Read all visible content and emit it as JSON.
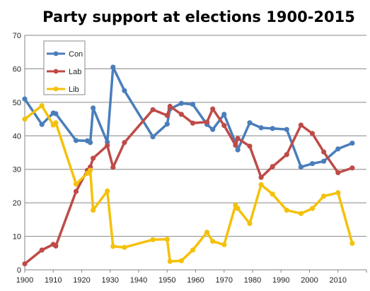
{
  "chart_data": {
    "type": "line",
    "title": "Party support at elections 1900-2015",
    "xlabel": "",
    "ylabel": "",
    "xlim": [
      1900,
      2020
    ],
    "ylim": [
      0,
      70
    ],
    "x_ticks": [
      1900,
      1910,
      1920,
      1930,
      1940,
      1950,
      1960,
      1970,
      1980,
      1990,
      2000,
      2010
    ],
    "y_ticks": [
      0,
      10,
      20,
      30,
      40,
      50,
      60,
      70
    ],
    "grid": "horizontal",
    "legend_position": "top-left",
    "series": [
      {
        "name": "Con",
        "color": "#4a7ebb",
        "points": [
          [
            1900,
            51
          ],
          [
            1906,
            43.4
          ],
          [
            1910,
            46.8
          ],
          [
            1910.9,
            46.6
          ],
          [
            1918,
            38.6
          ],
          [
            1922,
            38.5
          ],
          [
            1923,
            38
          ],
          [
            1924,
            48.3
          ],
          [
            1929,
            38.1
          ],
          [
            1931,
            60.5
          ],
          [
            1935,
            53.5
          ],
          [
            1945,
            39.7
          ],
          [
            1950,
            43.5
          ],
          [
            1951,
            48
          ],
          [
            1955,
            49.7
          ],
          [
            1959,
            49.4
          ],
          [
            1964,
            43.4
          ],
          [
            1966,
            41.9
          ],
          [
            1970,
            46.4
          ],
          [
            1974,
            37.9
          ],
          [
            1974.8,
            35.8
          ],
          [
            1979,
            43.9
          ],
          [
            1983,
            42.4
          ],
          [
            1987,
            42.2
          ],
          [
            1992,
            41.9
          ],
          [
            1997,
            30.7
          ],
          [
            2001,
            31.7
          ],
          [
            2005,
            32.4
          ],
          [
            2010,
            36.1
          ],
          [
            2015,
            37.8
          ]
        ]
      },
      {
        "name": "Lab",
        "color": "#be4b48",
        "points": [
          [
            1900,
            1.8
          ],
          [
            1906,
            5.9
          ],
          [
            1910,
            7.6
          ],
          [
            1910.9,
            7.1
          ],
          [
            1918,
            23.4
          ],
          [
            1922,
            29.7
          ],
          [
            1923,
            30.7
          ],
          [
            1924,
            33.3
          ],
          [
            1929,
            37.1
          ],
          [
            1931,
            30.6
          ],
          [
            1935,
            38
          ],
          [
            1945,
            47.8
          ],
          [
            1950,
            46.1
          ],
          [
            1951,
            48.8
          ],
          [
            1955,
            46.4
          ],
          [
            1959,
            43.8
          ],
          [
            1964,
            44.1
          ],
          [
            1966,
            48
          ],
          [
            1970,
            43.1
          ],
          [
            1974,
            37.2
          ],
          [
            1974.8,
            39.2
          ],
          [
            1979,
            36.9
          ],
          [
            1983,
            27.6
          ],
          [
            1987,
            30.8
          ],
          [
            1992,
            34.4
          ],
          [
            1997,
            43.2
          ],
          [
            2001,
            40.7
          ],
          [
            2005,
            35.2
          ],
          [
            2010,
            29
          ],
          [
            2015,
            30.4
          ]
        ]
      },
      {
        "name": "Lib",
        "color": "#f4c10a",
        "points": [
          [
            1900,
            45
          ],
          [
            1906,
            49
          ],
          [
            1910,
            43.2
          ],
          [
            1910.9,
            43.9
          ],
          [
            1918,
            25.6
          ],
          [
            1922,
            28.8
          ],
          [
            1923,
            29.7
          ],
          [
            1924,
            17.8
          ],
          [
            1929,
            23.5
          ],
          [
            1931,
            7
          ],
          [
            1935,
            6.7
          ],
          [
            1945,
            9
          ],
          [
            1950,
            9.1
          ],
          [
            1951,
            2.5
          ],
          [
            1955,
            2.7
          ],
          [
            1959,
            5.9
          ],
          [
            1964,
            11.2
          ],
          [
            1966,
            8.5
          ],
          [
            1970,
            7.5
          ],
          [
            1974,
            19.3
          ],
          [
            1974.8,
            18.3
          ],
          [
            1979,
            13.8
          ],
          [
            1983,
            25.4
          ],
          [
            1987,
            22.6
          ],
          [
            1992,
            17.8
          ],
          [
            1997,
            16.8
          ],
          [
            2001,
            18.3
          ],
          [
            2005,
            22
          ],
          [
            2010,
            23
          ],
          [
            2015,
            7.9
          ]
        ]
      }
    ]
  }
}
